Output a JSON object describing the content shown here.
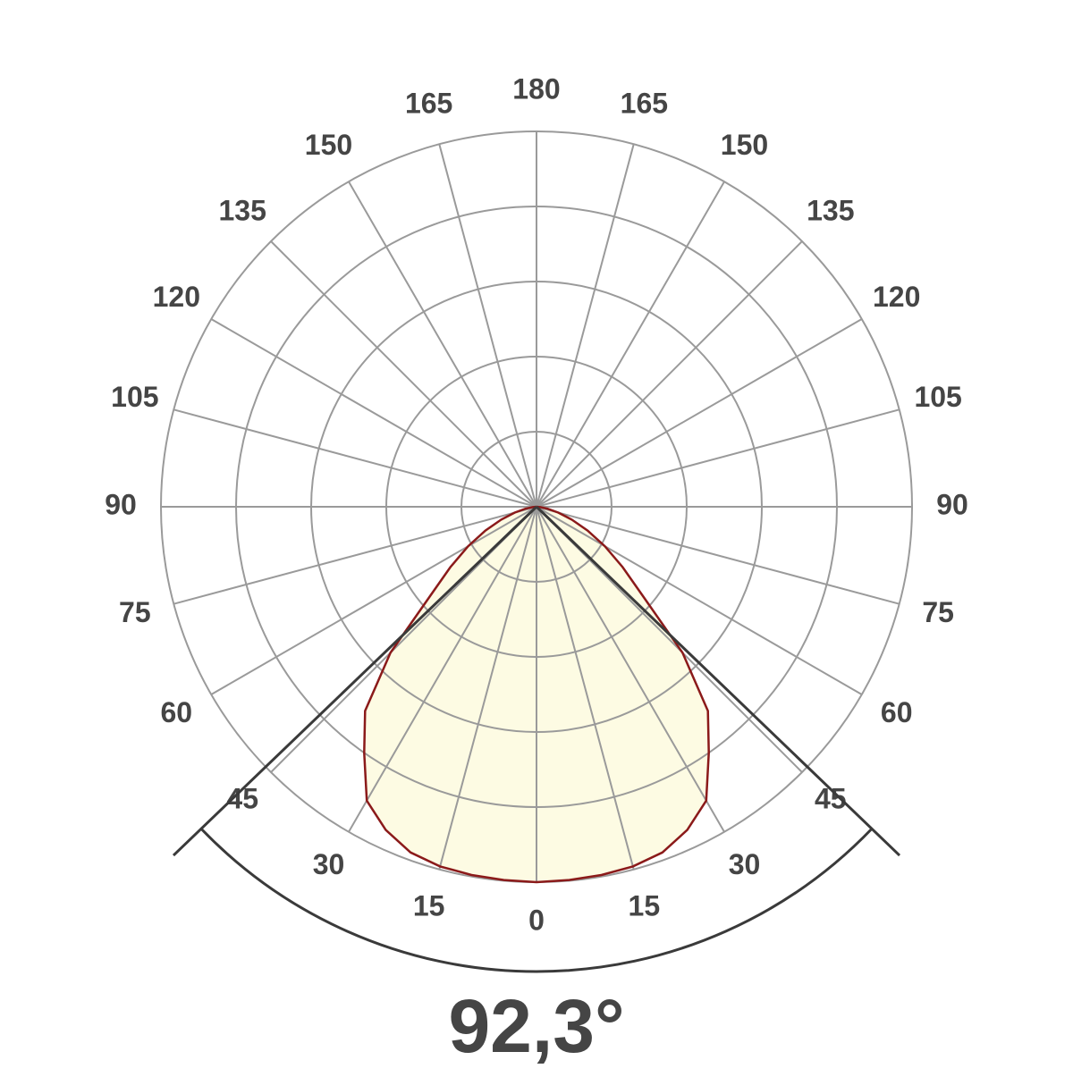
{
  "chart_data": {
    "type": "polar",
    "thetaticks": [
      0,
      15,
      30,
      45,
      60,
      75,
      90,
      105,
      120,
      135,
      150,
      165,
      180
    ],
    "rlim": [
      0,
      5
    ],
    "rticks": [
      1,
      2,
      3,
      4,
      5
    ],
    "grid": true,
    "series": [
      {
        "color": "#8b1a1a",
        "fill": "#fdfbe3",
        "theta": [
          -90,
          -85,
          -80,
          -75,
          -70,
          -65,
          -60,
          -55,
          -50,
          -45,
          -40,
          -35,
          -30,
          -25,
          -20,
          -15,
          -10,
          -5,
          0,
          5,
          10,
          15,
          20,
          25,
          30,
          35,
          40,
          45,
          50,
          55,
          60,
          65,
          70,
          75,
          80,
          85,
          90
        ],
        "values": [
          0,
          0.05,
          0.15,
          0.3,
          0.5,
          0.75,
          1.05,
          1.4,
          1.85,
          2.75,
          3.55,
          4.0,
          4.52,
          4.75,
          4.9,
          4.96,
          4.98,
          4.99,
          5.0,
          4.99,
          4.98,
          4.96,
          4.9,
          4.75,
          4.52,
          4.0,
          3.55,
          2.75,
          1.85,
          1.4,
          1.05,
          0.75,
          0.5,
          0.3,
          0.15,
          0.05,
          0
        ]
      }
    ],
    "beam_angle": 92.3,
    "beam_angle_label": "92,3°"
  }
}
